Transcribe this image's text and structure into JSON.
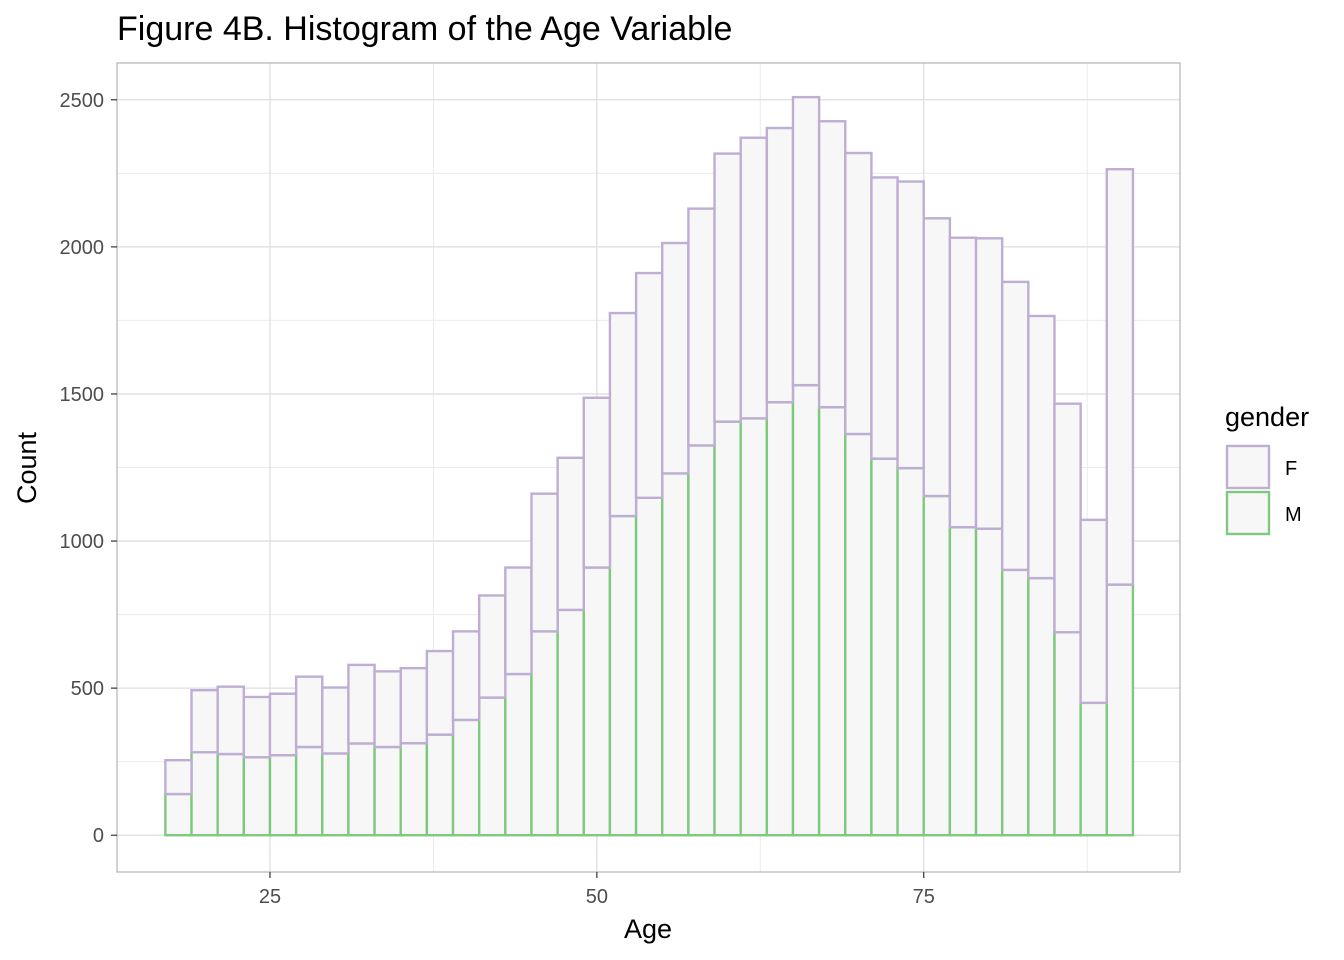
{
  "chart_data": {
    "type": "bar",
    "title": "Figure 4B. Histogram of the Age Variable",
    "xlabel": "Age",
    "ylabel": "Count",
    "xlim": [
      13.3,
      94.6
    ],
    "ylim": [
      -125,
      2625
    ],
    "x_ticks": [
      25,
      50,
      75
    ],
    "x_tick_labels": [
      "25",
      "50",
      "75"
    ],
    "y_ticks": [
      0,
      500,
      1000,
      1500,
      2000,
      2500
    ],
    "y_tick_labels": [
      "0",
      "500",
      "1000",
      "1500",
      "2000",
      "2500"
    ],
    "grid": true,
    "stacked": true,
    "bin_width": 2,
    "bin_starts": [
      17,
      19,
      21,
      23,
      25,
      27,
      29,
      31,
      33,
      35,
      37,
      39,
      41,
      43,
      45,
      47,
      49,
      51,
      53,
      55,
      57,
      59,
      61,
      63,
      65,
      67,
      69,
      71,
      73,
      75,
      77,
      79,
      81,
      83,
      85,
      87,
      89
    ],
    "bar_fill": "#f7f7f7",
    "legend": {
      "title": "gender",
      "position": "right"
    },
    "series": [
      {
        "name": "M",
        "color": "#7fc97f",
        "values": [
          140,
          282,
          276,
          265,
          272,
          300,
          278,
          312,
          300,
          313,
          342,
          392,
          468,
          548,
          693,
          766,
          910,
          1085,
          1147,
          1230,
          1325,
          1406,
          1417,
          1472,
          1530,
          1455,
          1364,
          1280,
          1248,
          1153,
          1047,
          1042,
          902,
          874,
          690,
          450,
          852
        ]
      },
      {
        "name": "F",
        "color": "#beaed4",
        "values": [
          115,
          211,
          229,
          205,
          209,
          239,
          224,
          267,
          257,
          255,
          284,
          301,
          347,
          362,
          468,
          517,
          577,
          690,
          764,
          783,
          805,
          911,
          954,
          932,
          979,
          972,
          955,
          956,
          974,
          944,
          984,
          987,
          979,
          891,
          777,
          622,
          1412
        ]
      }
    ]
  }
}
